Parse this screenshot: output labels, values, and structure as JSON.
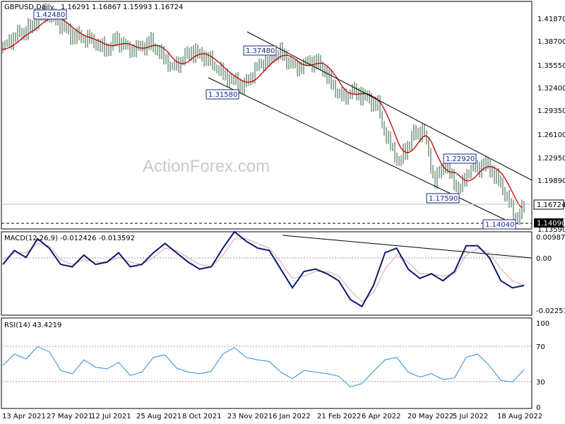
{
  "chart_data": [
    {
      "type": "candlestick",
      "title": "GBPUSD,Daily",
      "ohlc_text": [
        "1.16291",
        "1.16867",
        "1.15993",
        "1.16724"
      ],
      "y_ticks": [
        "1.41870",
        "1.38700",
        "1.35550",
        "1.32400",
        "1.29350",
        "1.26100",
        "1.22950",
        "1.19890",
        "1.13590"
      ],
      "last_price": "1.16724",
      "support_label": "1.14090",
      "annotations": [
        "1.42480",
        "1.37480",
        "1.31580",
        "1.22920",
        "1.17590",
        "1.14040"
      ],
      "watermark": "ActionForex.com",
      "overlays": [
        "Moving average (red)",
        "Upper trendline",
        "Lower trendline",
        "Horizontal support line"
      ]
    },
    {
      "type": "line",
      "title": "MACD(12,26,9) -0.012426 -0.013592",
      "y_ticks": [
        "0.009872",
        "0.00",
        "-0.022516"
      ],
      "series": [
        {
          "values": [
            -0.002,
            0.004,
            0.001,
            0.009,
            0.005,
            -0.002,
            -0.003,
            0.002,
            -0.002,
            -0.001,
            0.003,
            -0.003,
            -0.002,
            0.003,
            0.007,
            0.003,
            -0.001,
            -0.004,
            -0.003,
            0.005,
            0.012,
            0.008,
            0.005,
            0.004,
            -0.004,
            -0.012,
            -0.005,
            -0.004,
            -0.006,
            -0.009,
            -0.017,
            -0.02,
            -0.011,
            0.003,
            0.005,
            -0.004,
            -0.008,
            -0.006,
            -0.009,
            -0.005,
            0.006,
            0.006,
            0.001,
            -0.009,
            -0.012,
            -0.011
          ]
        },
        {
          "values": [
            0.0,
            0.003,
            0.003,
            0.007,
            0.006,
            0.0,
            -0.002,
            0.0,
            -0.001,
            -0.001,
            0.001,
            -0.001,
            -0.002,
            0.001,
            0.005,
            0.004,
            0.001,
            -0.002,
            -0.003,
            0.002,
            0.009,
            0.009,
            0.007,
            0.005,
            -0.001,
            -0.008,
            -0.007,
            -0.005,
            -0.005,
            -0.007,
            -0.013,
            -0.018,
            -0.014,
            -0.004,
            0.002,
            -0.001,
            -0.006,
            -0.006,
            -0.007,
            -0.006,
            0.002,
            0.005,
            0.003,
            -0.004,
            -0.009,
            -0.011
          ]
        }
      ]
    },
    {
      "type": "line",
      "title": "RSI(14) 43.4219",
      "y_ticks": [
        "100",
        "70",
        "30",
        "0"
      ],
      "series": [
        {
          "values": [
            48,
            62,
            56,
            71,
            65,
            42,
            38,
            55,
            46,
            44,
            52,
            36,
            40,
            58,
            61,
            45,
            40,
            38,
            41,
            62,
            70,
            58,
            55,
            53,
            40,
            32,
            42,
            40,
            38,
            35,
            22,
            26,
            41,
            55,
            58,
            40,
            34,
            38,
            31,
            33,
            58,
            62,
            48,
            30,
            28,
            43
          ]
        }
      ]
    }
  ],
  "x_axis_labels": [
    "13 Apr 2021",
    "27 May 2021",
    "12 Jul 2021",
    "25 Aug 2021",
    "8 Oct 2021",
    "23 Nov 2021",
    "6 Jan 2022",
    "21 Feb 2022",
    "6 Apr 2022",
    "20 May 2022",
    "5 Jul 2022",
    "18 Aug 2022"
  ]
}
